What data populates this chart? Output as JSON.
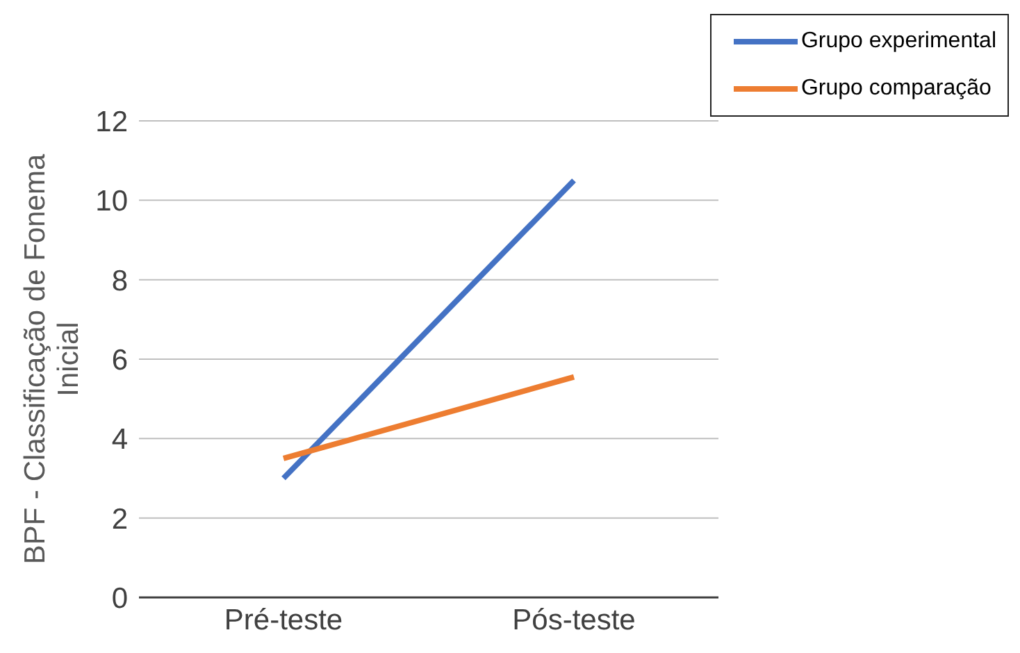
{
  "chart_data": {
    "type": "line",
    "ylabel": "BPF - Classificação de Fonema Inicial",
    "categories": [
      "Pré-teste",
      "Pós-teste"
    ],
    "series": [
      {
        "name": "Grupo experimental",
        "color": "#4472c4",
        "values": [
          3.0,
          10.5
        ]
      },
      {
        "name": "Grupo comparação",
        "color": "#ed7d31",
        "values": [
          3.5,
          5.55
        ]
      }
    ],
    "ylim": [
      0,
      12
    ],
    "yticks": [
      0,
      2,
      4,
      6,
      8,
      10,
      12
    ],
    "grid": "y",
    "legend": "top right",
    "marker": "none",
    "line_style": "solid"
  }
}
